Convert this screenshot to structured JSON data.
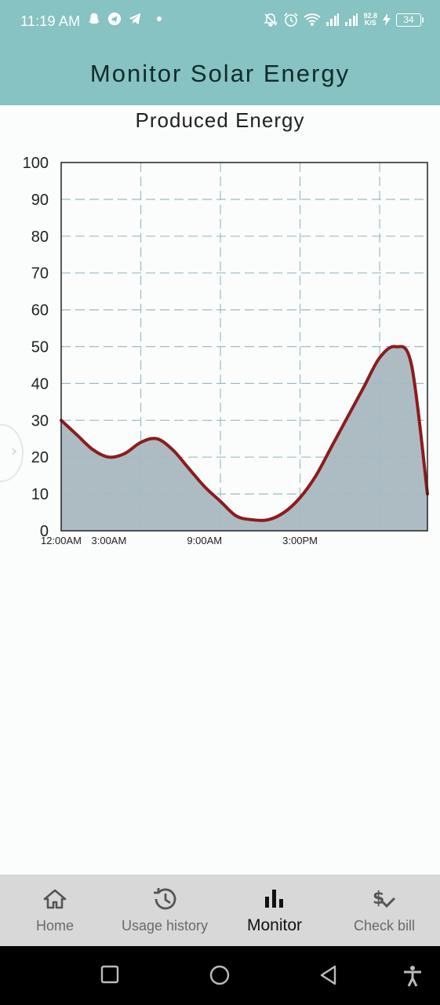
{
  "status_bar": {
    "time": "11:19 AM",
    "network_speed_value": "92.8",
    "network_speed_unit": "K/S",
    "battery": "34",
    "left_icons": [
      "snapchat-icon",
      "telegram-icon",
      "telegram-send-icon",
      "dot-icon"
    ],
    "right_icons": [
      "notifications-off-icon",
      "alarm-icon",
      "wifi-icon",
      "signal-icon",
      "signal-icon",
      "charging-icon",
      "battery-icon"
    ]
  },
  "app_bar": {
    "title": "Monitor Solar Energy"
  },
  "chart_title": "Produced Energy",
  "chart_data": {
    "type": "area",
    "title": "Produced Energy",
    "ylim": [
      0,
      100
    ],
    "yticks": [
      0,
      10,
      20,
      30,
      40,
      50,
      60,
      70,
      80,
      90,
      100
    ],
    "xlim": [
      0,
      23
    ],
    "xticks": [
      {
        "x": 0,
        "label": "12:00AM"
      },
      {
        "x": 3,
        "label": "3:00AM"
      },
      {
        "x": 9,
        "label": "9:00AM"
      },
      {
        "x": 15,
        "label": "3:00PM"
      }
    ],
    "gridlines_x": [
      5,
      10,
      15,
      20
    ],
    "grid": true,
    "series": [
      {
        "x": [
          0,
          1,
          2,
          3,
          4,
          5,
          6,
          7,
          8,
          9,
          10,
          11,
          12,
          13,
          14,
          15,
          16,
          17,
          18,
          19,
          20,
          21,
          22,
          23
        ],
        "values": [
          30,
          26,
          22,
          20,
          21,
          24,
          25,
          22,
          17,
          12,
          8,
          4,
          3,
          3,
          5,
          9,
          15,
          23,
          31,
          39,
          47,
          50,
          45,
          10
        ]
      }
    ],
    "line_color": "#8b1c1f",
    "fill_color": "#adbcc2",
    "grid_color": "#9bbcc4"
  },
  "bottom_nav": {
    "items": [
      {
        "label": "Home",
        "icon": "home-icon"
      },
      {
        "label": "Usage history",
        "icon": "history-icon"
      },
      {
        "label": "Monitor",
        "icon": "bar-chart-icon",
        "active": true
      },
      {
        "label": "Check bill",
        "icon": "price-check-icon"
      }
    ]
  },
  "system_nav": [
    "recents-button",
    "home-button",
    "back-button",
    "accessibility-button"
  ]
}
